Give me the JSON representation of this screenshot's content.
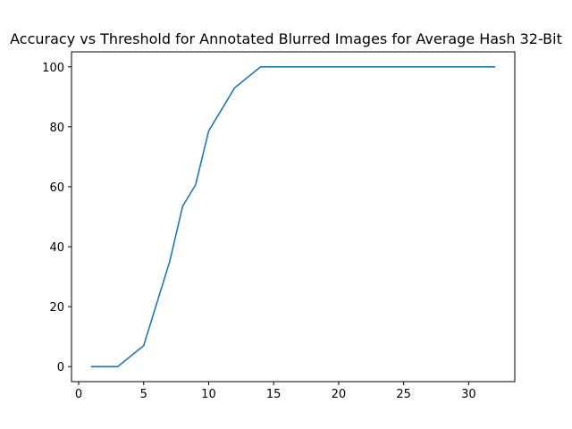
{
  "chart_data": {
    "type": "line",
    "title": "Accuracy vs Threshold for Annotated Blurred Images for Average Hash 32-Bit",
    "xlabel": "",
    "ylabel": "",
    "xlim": [
      -0.55,
      33.55
    ],
    "ylim": [
      -5,
      105
    ],
    "xticks": [
      0,
      5,
      10,
      15,
      20,
      25,
      30
    ],
    "yticks": [
      0,
      20,
      40,
      60,
      80,
      100
    ],
    "grid": false,
    "colors": {
      "series": "#1f77b4",
      "axes": "#000000",
      "background": "#ffffff"
    },
    "series": [
      {
        "x": [
          1,
          2,
          3,
          4,
          5,
          6,
          7,
          8,
          9,
          10,
          11,
          12,
          13,
          14,
          15,
          16,
          17,
          18,
          19,
          20,
          21,
          22,
          23,
          24,
          25,
          26,
          27,
          28,
          29,
          30,
          31,
          32
        ],
        "values": [
          0,
          0,
          0,
          3.5,
          7,
          21,
          35,
          53.5,
          60.7,
          78.6,
          85.8,
          93,
          96.5,
          100,
          100,
          100,
          100,
          100,
          100,
          100,
          100,
          100,
          100,
          100,
          100,
          100,
          100,
          100,
          100,
          100,
          100,
          100
        ]
      }
    ]
  }
}
